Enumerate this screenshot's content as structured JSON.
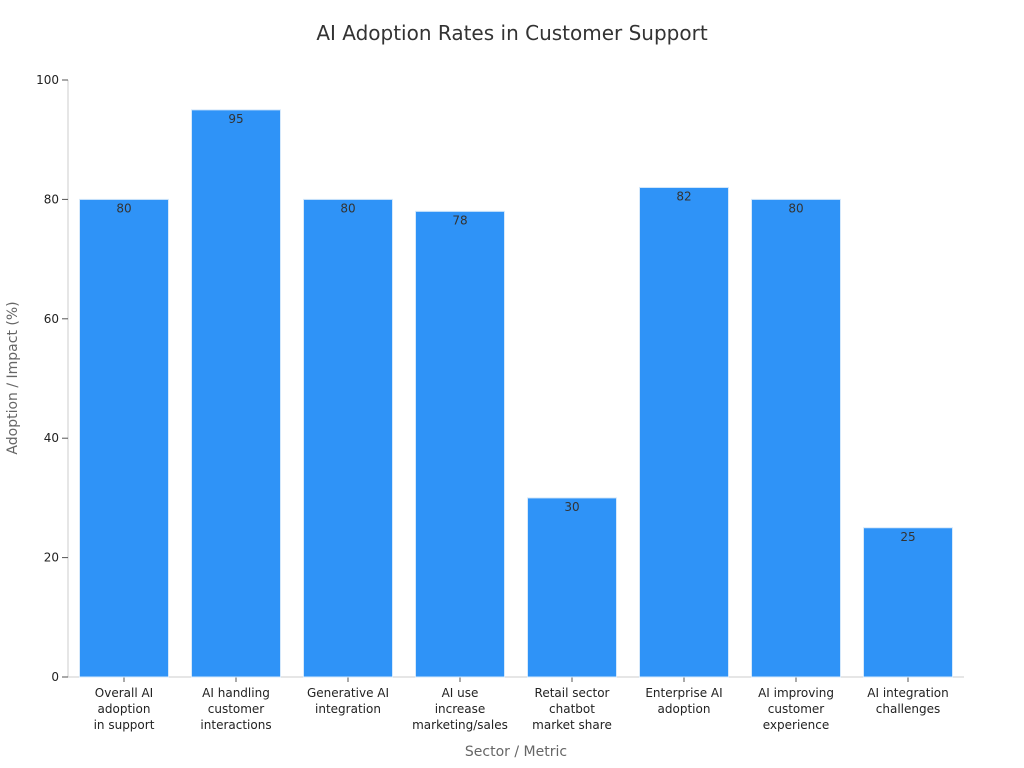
{
  "chart_data": {
    "type": "bar",
    "title": "AI Adoption Rates in Customer Support",
    "xlabel": "Sector / Metric",
    "ylabel": "Adoption / Impact (%)",
    "ylim": [
      0,
      100
    ],
    "yticks": [
      "0",
      "20",
      "40",
      "60",
      "80",
      "100"
    ],
    "grid": false,
    "legend": "none",
    "bar_color": "#2f93f7",
    "categories": [
      [
        "Overall AI",
        "adoption",
        "in support"
      ],
      [
        "AI handling",
        "customer",
        "interactions"
      ],
      [
        "Generative AI",
        "integration"
      ],
      [
        "AI use",
        "increase",
        "marketing/sales"
      ],
      [
        "Retail sector",
        "chatbot",
        "market share"
      ],
      [
        "Enterprise AI",
        "adoption"
      ],
      [
        "AI improving",
        "customer",
        "experience"
      ],
      [
        "AI integration",
        "challenges"
      ]
    ],
    "values": [
      80,
      95,
      80,
      78,
      30,
      82,
      80,
      25
    ]
  }
}
